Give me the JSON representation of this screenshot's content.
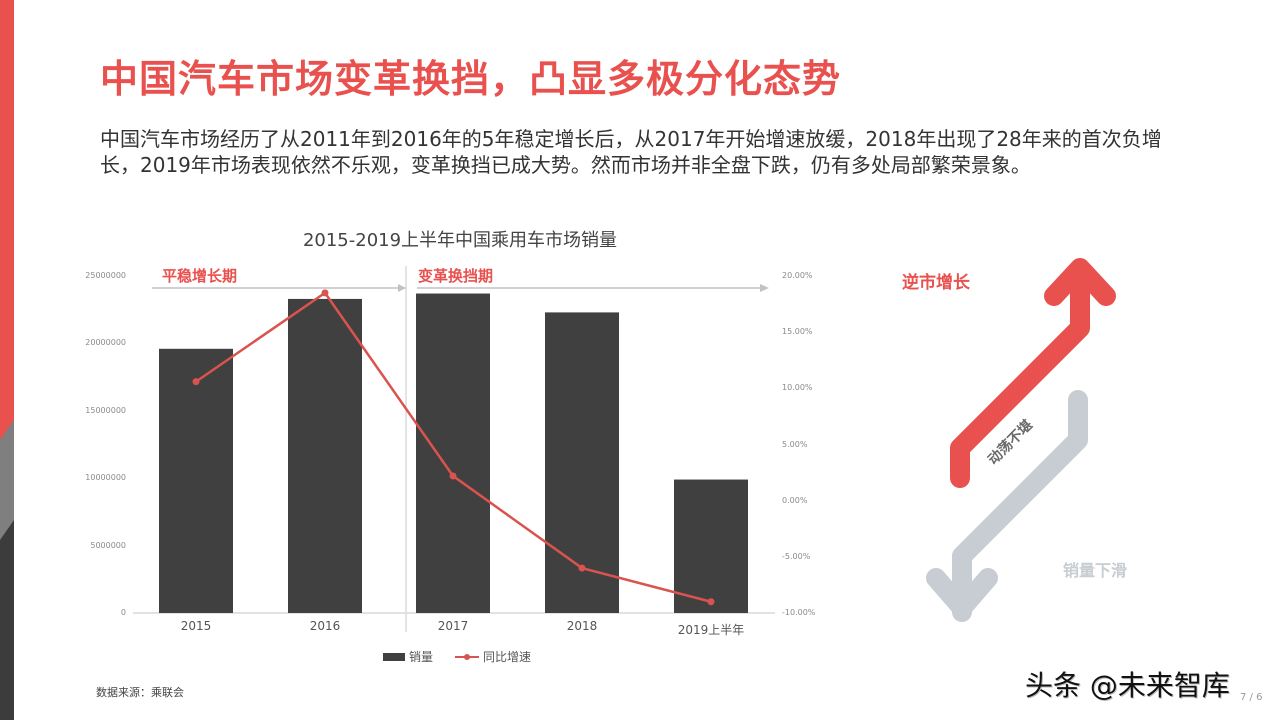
{
  "slide": {
    "title": "中国汽车市场变革换挡，凸显多极分化态势",
    "description": "中国汽车市场经历了从2011年到2016年的5年稳定增长后，从2017年开始增速放缓，2018年出现了28年来的首次负增长，2019年市场表现依然不乐观，变革换挡已成大势。然而市场并非全盘下跌，仍有多处局部繁荣景象。",
    "source": "数据来源：乘联会",
    "watermark": "头条 @未来智库",
    "page_number": "7 / 6",
    "colors": {
      "accent": "#e9514f",
      "bar": "#404040",
      "line": "#d9534f",
      "grey_arrow": "#c8cdd3"
    }
  },
  "chart": {
    "title": "2015-2019上半年中国乘用车市场销量",
    "phase_1": "平稳增长期",
    "phase_2": "变革换挡期",
    "left_ticks": [
      "25000000",
      "20000000",
      "15000000",
      "10000000",
      "5000000",
      "0"
    ],
    "right_ticks": [
      "20.00%",
      "15.00%",
      "10.00%",
      "5.00%",
      "0.00%",
      "-5.00%",
      "-10.00%"
    ],
    "categories": [
      "2015",
      "2016",
      "2017",
      "2018",
      "2019上半年"
    ],
    "legend": {
      "bar": "销量",
      "line": "同比增速"
    }
  },
  "side_graphic": {
    "up_label": "逆市增长",
    "mid_label": "动荡不堪",
    "down_label": "销量下滑"
  },
  "chart_data": {
    "type": "bar",
    "title": "2015-2019上半年中国乘用车市场销量",
    "categories": [
      "2015",
      "2016",
      "2017",
      "2018",
      "2019上半年"
    ],
    "series": [
      {
        "name": "销量",
        "type": "bar",
        "axis": "left",
        "values": [
          19600000,
          23300000,
          23700000,
          22300000,
          9900000
        ]
      },
      {
        "name": "同比增速",
        "type": "line",
        "axis": "right",
        "values": [
          10.6,
          18.5,
          2.2,
          -6.0,
          -9.0
        ],
        "unit": "%"
      }
    ],
    "ylim_left": [
      0,
      25000000
    ],
    "ylim_right": [
      -10,
      20
    ],
    "left_ticks": [
      0,
      5000000,
      10000000,
      15000000,
      20000000,
      25000000
    ],
    "right_ticks": [
      -10,
      -5,
      0,
      5,
      10,
      15,
      20
    ],
    "annotations": [
      "平稳增长期 (2015-2016)",
      "变革换挡期 (2017-2019上半年)"
    ],
    "legend_position": "bottom",
    "grid": false,
    "xlabel": "",
    "ylabel": ""
  }
}
